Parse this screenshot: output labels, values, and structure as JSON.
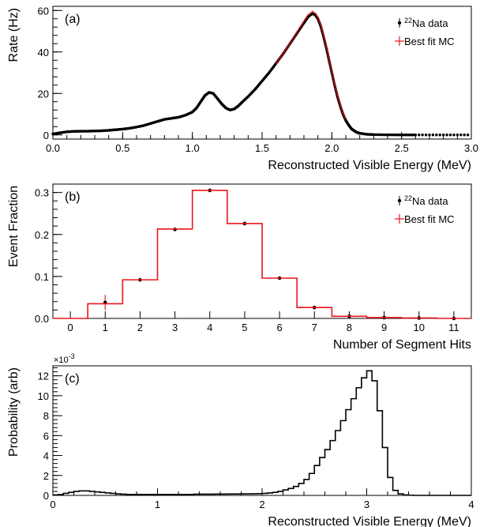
{
  "chart_data": [
    {
      "type": "line",
      "panel_label": "(a)",
      "xlabel": "Reconstructed Visible Energy (MeV)",
      "ylabel": "Rate (Hz)",
      "xlim": [
        0,
        3.0
      ],
      "ylim": [
        -2,
        62
      ],
      "xticks": [
        0.0,
        0.5,
        1.0,
        1.5,
        2.0,
        2.5,
        3.0
      ],
      "xtick_labels": [
        "0.0",
        "0.5",
        "1.0",
        "1.5",
        "2.0",
        "2.5",
        "3.0"
      ],
      "yticks": [
        0,
        20,
        40,
        60
      ],
      "ytick_labels": [
        "0",
        "20",
        "40",
        "60"
      ],
      "legend": {
        "position": "top-right",
        "entries": [
          {
            "iso": "22",
            "text": "Na data"
          },
          {
            "text": "Best fit MC"
          }
        ]
      },
      "series": [
        {
          "name": "Na data",
          "style": "points",
          "color": "#000000",
          "x": [
            0.0,
            0.05,
            0.1,
            0.15,
            0.2,
            0.25,
            0.3,
            0.35,
            0.4,
            0.45,
            0.5,
            0.55,
            0.6,
            0.65,
            0.7,
            0.75,
            0.8,
            0.85,
            0.9,
            0.95,
            1.0,
            1.03,
            1.06,
            1.09,
            1.12,
            1.15,
            1.18,
            1.21,
            1.24,
            1.27,
            1.3,
            1.33,
            1.36,
            1.4,
            1.45,
            1.5,
            1.55,
            1.6,
            1.65,
            1.7,
            1.75,
            1.8,
            1.83,
            1.86,
            1.88,
            1.9,
            1.92,
            1.94,
            1.96,
            1.98,
            2.0,
            2.02,
            2.04,
            2.06,
            2.08,
            2.1,
            2.12,
            2.14,
            2.16,
            2.18,
            2.2,
            2.25,
            2.3,
            2.4,
            2.5,
            2.6,
            2.8,
            3.0
          ],
          "y": [
            0.5,
            1.0,
            1.5,
            1.7,
            1.8,
            1.8,
            1.9,
            2.0,
            2.2,
            2.5,
            2.8,
            3.2,
            3.8,
            4.5,
            5.5,
            6.5,
            7.5,
            8.0,
            8.5,
            9.5,
            11.0,
            13.0,
            16.0,
            19.0,
            20.5,
            20.0,
            17.5,
            15.0,
            13.0,
            12.0,
            12.5,
            14.0,
            16.0,
            18.5,
            22.0,
            26.0,
            30.0,
            34.5,
            39.0,
            44.0,
            49.0,
            54.0,
            57.0,
            58.5,
            58.0,
            56.0,
            52.5,
            47.5,
            42.0,
            36.0,
            30.0,
            24.0,
            18.5,
            14.0,
            10.0,
            7.0,
            4.8,
            3.0,
            2.0,
            1.2,
            0.8,
            0.3,
            0.15,
            0.05,
            0.0,
            0.0,
            0.0,
            0.0
          ]
        },
        {
          "name": "Best fit MC",
          "style": "line",
          "color": "#e8161b",
          "x": [
            1.6,
            1.65,
            1.7,
            1.75,
            1.8,
            1.83,
            1.86,
            1.88,
            1.9,
            1.92,
            1.94,
            1.96,
            1.98,
            2.0,
            2.02,
            2.04,
            2.06,
            2.08,
            2.1
          ],
          "y": [
            34.5,
            39.0,
            44.2,
            49.5,
            54.8,
            57.8,
            59.5,
            58.8,
            56.5,
            53.0,
            48.0,
            42.5,
            36.5,
            30.5,
            24.5,
            19.0,
            14.5,
            10.5,
            7.5
          ]
        }
      ]
    },
    {
      "type": "bar",
      "panel_label": "(b)",
      "xlabel": "Number of Segment Hits",
      "ylabel": "Event Fraction",
      "xlim": [
        -0.5,
        11.5
      ],
      "ylim": [
        0,
        0.32
      ],
      "categories": [
        "0",
        "1",
        "2",
        "3",
        "4",
        "5",
        "6",
        "7",
        "8",
        "9",
        "10",
        "11"
      ],
      "yticks": [
        0.0,
        0.1,
        0.2,
        0.3
      ],
      "ytick_labels": [
        "0.0",
        "0.1",
        "0.2",
        "0.3"
      ],
      "legend": {
        "position": "top-right",
        "entries": [
          {
            "iso": "22",
            "text": "Na data"
          },
          {
            "text": "Best fit MC"
          }
        ]
      },
      "series": [
        {
          "name": "Na data",
          "style": "points",
          "color": "#000000",
          "values": [
            null,
            0.038,
            0.092,
            0.212,
            0.305,
            0.226,
            0.096,
            0.026,
            0.005,
            0.002,
            0.001,
            0.0
          ],
          "errors": [
            null,
            0.018,
            null,
            null,
            null,
            null,
            null,
            null,
            null,
            null,
            null,
            null
          ]
        },
        {
          "name": "Best fit MC",
          "style": "step",
          "color": "#e8161b",
          "values": [
            0.0,
            0.035,
            0.092,
            0.213,
            0.305,
            0.226,
            0.096,
            0.026,
            0.005,
            0.002,
            0.001,
            0.0
          ]
        }
      ]
    },
    {
      "type": "line",
      "panel_label": "(c)",
      "xlabel": "Reconstructed Visible Energy (MeV)",
      "ylabel": "Probability (arb)",
      "multiplier_label": "×10",
      "multiplier_exp": "-3",
      "xlim": [
        0,
        4
      ],
      "ylim": [
        0,
        13
      ],
      "xticks": [
        0,
        1,
        2,
        3,
        4
      ],
      "xtick_labels": [
        "0",
        "1",
        "2",
        "3",
        "4"
      ],
      "yticks": [
        0,
        2,
        4,
        6,
        8,
        10,
        12
      ],
      "ytick_labels": [
        "0",
        "2",
        "4",
        "6",
        "8",
        "10",
        "12"
      ],
      "series": [
        {
          "name": "",
          "style": "step",
          "color": "#000000",
          "bin_width": 0.05,
          "values": [
            0.05,
            0.1,
            0.2,
            0.3,
            0.4,
            0.45,
            0.45,
            0.4,
            0.35,
            0.3,
            0.25,
            0.2,
            0.15,
            0.12,
            0.1,
            0.1,
            0.1,
            0.1,
            0.1,
            0.1,
            0.1,
            0.1,
            0.1,
            0.1,
            0.1,
            0.1,
            0.1,
            0.12,
            0.12,
            0.12,
            0.12,
            0.13,
            0.13,
            0.13,
            0.14,
            0.14,
            0.15,
            0.15,
            0.16,
            0.17,
            0.2,
            0.24,
            0.3,
            0.4,
            0.55,
            0.7,
            0.9,
            1.2,
            1.6,
            2.2,
            3.0,
            3.8,
            4.6,
            5.5,
            6.5,
            7.5,
            8.6,
            9.7,
            10.8,
            11.8,
            12.5,
            11.5,
            8.5,
            4.8,
            1.8,
            0.5,
            0.15,
            0.05,
            0.02,
            0.0,
            0.0,
            0.0,
            0.0,
            0.0,
            0.0,
            0.0,
            0.0,
            0.0,
            0.0,
            0.0
          ]
        }
      ]
    }
  ]
}
